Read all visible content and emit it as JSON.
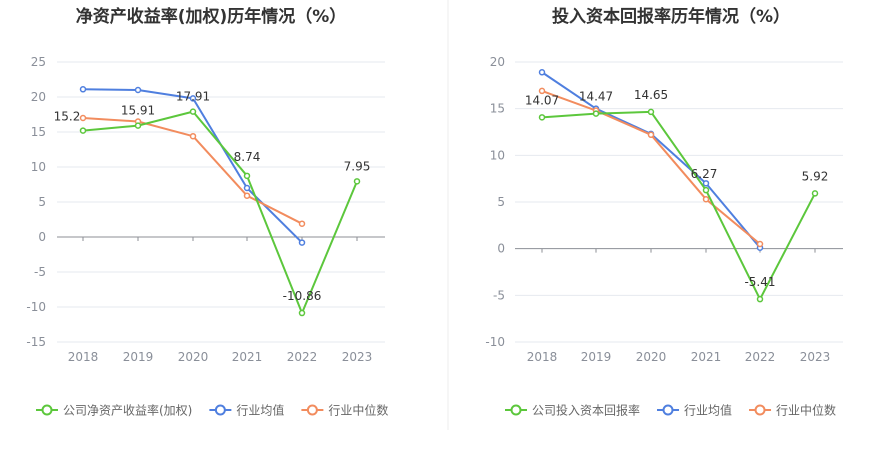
{
  "chart_data": [
    {
      "type": "line",
      "title": "净资产收益率(加权)历年情况（%）",
      "categories": [
        "2018",
        "2019",
        "2020",
        "2021",
        "2022",
        "2023"
      ],
      "ylim": [
        -15,
        25
      ],
      "yticks": [
        -15,
        -10,
        -5,
        0,
        5,
        10,
        15,
        20,
        25
      ],
      "grid": true,
      "legend_position": "bottom",
      "series": [
        {
          "name": "公司净资产收益率(加权)",
          "color": "#5cc73c",
          "values": [
            15.2,
            15.91,
            17.91,
            8.74,
            -10.86,
            7.95
          ],
          "labels": [
            "15.2",
            "15.91",
            "17.91",
            "8.74",
            "-10.86",
            "7.95"
          ]
        },
        {
          "name": "行业均值",
          "color": "#4f7fdf",
          "values": [
            21.1,
            21.0,
            19.8,
            7.0,
            -0.8,
            null
          ]
        },
        {
          "name": "行业中位数",
          "color": "#f28c5e",
          "values": [
            17.0,
            16.5,
            14.4,
            5.9,
            1.9,
            null
          ]
        }
      ]
    },
    {
      "type": "line",
      "title": "投入资本回报率历年情况（%）",
      "categories": [
        "2018",
        "2019",
        "2020",
        "2021",
        "2022",
        "2023"
      ],
      "ylim": [
        -10,
        20
      ],
      "yticks": [
        -10,
        -5,
        0,
        5,
        10,
        15,
        20
      ],
      "grid": true,
      "legend_position": "bottom",
      "series": [
        {
          "name": "公司投入资本回报率",
          "color": "#5cc73c",
          "values": [
            14.07,
            14.47,
            14.65,
            6.27,
            -5.41,
            5.92
          ],
          "labels": [
            "14.07",
            "14.47",
            "14.65",
            "6.27",
            "-5.41",
            "5.92"
          ]
        },
        {
          "name": "行业均值",
          "color": "#4f7fdf",
          "values": [
            18.9,
            15.0,
            12.3,
            7.0,
            0.1,
            null
          ]
        },
        {
          "name": "行业中位数",
          "color": "#f28c5e",
          "values": [
            16.9,
            14.8,
            12.2,
            5.3,
            0.5,
            null
          ]
        }
      ]
    }
  ]
}
